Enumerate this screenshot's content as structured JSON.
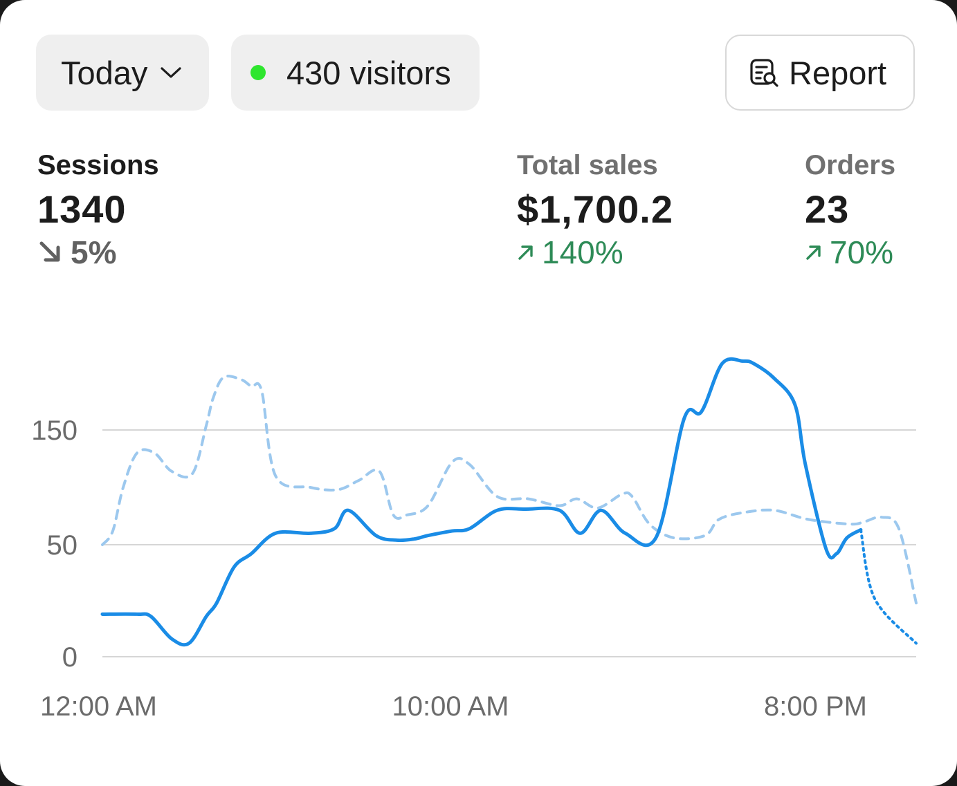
{
  "toolbar": {
    "date_label": "Today",
    "visitors_label": "430 visitors",
    "report_label": "Report"
  },
  "metrics": {
    "sessions": {
      "label": "Sessions",
      "value": "1340",
      "delta": "5%",
      "direction": "down"
    },
    "total_sales": {
      "label": "Total sales",
      "value": "$1,700.2",
      "delta": "140%",
      "direction": "up"
    },
    "orders": {
      "label": "Orders",
      "value": "23",
      "delta": "70%",
      "direction": "up"
    }
  },
  "colors": {
    "current_series": "#1a8ce6",
    "previous_series": "#9cc8ee",
    "positive": "#2e8b57",
    "live_dot": "#2ee62e"
  },
  "icons": [
    "chevron-down-icon",
    "live-dot-icon",
    "report-search-icon",
    "arrow-down-right-icon",
    "arrow-up-right-icon"
  ],
  "chart_data": {
    "type": "line",
    "y_tick_labels": [
      "0",
      "50",
      "150"
    ],
    "x_tick_labels": [
      "12:00 AM",
      "10:00 AM",
      "8:00 PM"
    ],
    "ylim": [
      0,
      200
    ],
    "xlim": [
      0,
      23.5
    ],
    "grid": true,
    "series": [
      {
        "style": "solid",
        "x": [
          0,
          1,
          1.4,
          2,
          2.5,
          3,
          3.3,
          3.8,
          4.3,
          5,
          6,
          6.7,
          7.1,
          7.9,
          8.5,
          9,
          9.4,
          10.1,
          10.6,
          11.4,
          12.2,
          13.2,
          13.8,
          14.4,
          15.1,
          16,
          16.8,
          17.3,
          17.9,
          18.5,
          18.8,
          19.4,
          20,
          20.3,
          20.9,
          21.2,
          21.5,
          21.9
        ],
        "y": [
          19,
          19,
          18,
          8,
          6,
          18,
          24,
          40,
          46,
          60,
          60,
          64,
          80,
          58,
          54,
          55,
          58,
          62,
          64,
          80,
          81,
          80,
          60,
          80,
          60,
          57,
          160,
          166,
          208,
          210,
          208,
          195,
          172,
          120,
          48,
          46,
          56,
          63
        ]
      },
      {
        "style": "dashed",
        "x": [
          0,
          0.3,
          0.6,
          1,
          1.5,
          2,
          2.6,
          3,
          3.2,
          3.5,
          4,
          4.3,
          4.6,
          5,
          6,
          6.8,
          7.4,
          8,
          8.4,
          8.8,
          9.4,
          10.1,
          10.6,
          11.4,
          12.3,
          13.2,
          13.7,
          14.3,
          15,
          15.3,
          15.8,
          16.5,
          17.4,
          17.8,
          18.5,
          19.4,
          20.4,
          21.6,
          22,
          22.5,
          23,
          23.5
        ],
        "y": [
          50,
          62,
          100,
          130,
          130,
          114,
          112,
          154,
          178,
          196,
          194,
          188,
          184,
          110,
          100,
          98,
          106,
          114,
          76,
          76,
          84,
          122,
          120,
          92,
          90,
          84,
          90,
          82,
          94,
          92,
          68,
          56,
          58,
          72,
          78,
          80,
          72,
          68,
          70,
          74,
          64,
          24
        ]
      },
      {
        "style": "dashed",
        "x": [
          21.9,
          22.3,
          23.5
        ],
        "y": [
          63,
          26,
          6
        ]
      }
    ]
  }
}
